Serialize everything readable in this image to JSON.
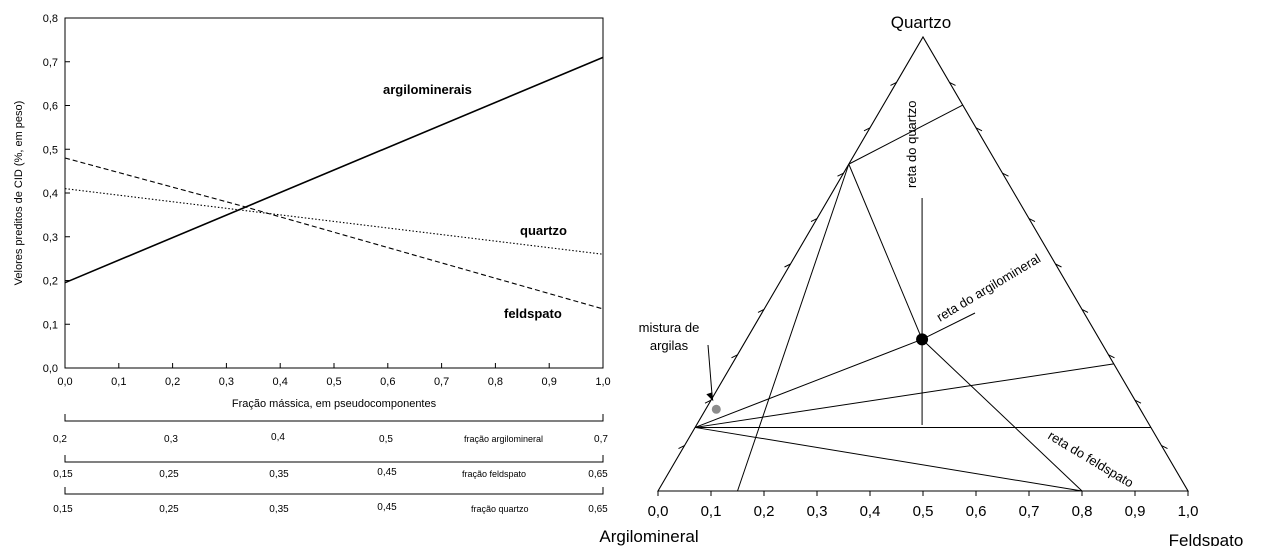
{
  "chart_data": [
    {
      "type": "line",
      "xlabel": "Fração mássica, em pseudocomponentes",
      "ylabel": "Velores preditos de CID (%, em peso)",
      "xlim": [
        0.0,
        1.0
      ],
      "ylim": [
        0.0,
        0.8
      ],
      "xticks": [
        "0,0",
        "0,1",
        "0,2",
        "0,3",
        "0,4",
        "0,5",
        "0,6",
        "0,7",
        "0,8",
        "0,9",
        "1,0"
      ],
      "yticks": [
        "0,0",
        "0,1",
        "0,2",
        "0,3",
        "0,4",
        "0,5",
        "0,6",
        "0,7",
        "0,8"
      ],
      "grid": false,
      "series": [
        {
          "name": "argilominerais",
          "style": "solid",
          "x": [
            0.0,
            1.0
          ],
          "y": [
            0.195,
            0.71
          ]
        },
        {
          "name": "quartzo",
          "style": "dotted",
          "x": [
            0.0,
            1.0
          ],
          "y": [
            0.41,
            0.26
          ]
        },
        {
          "name": "feldspato",
          "style": "dashed",
          "x": [
            0.0,
            0.33,
            1.0
          ],
          "y": [
            0.48,
            0.37,
            0.135
          ]
        }
      ],
      "secondary_scales": [
        {
          "name": "fração argilomineral",
          "ticks": [
            "0,2",
            "0,3",
            "0,4",
            "0,5",
            "0,7"
          ]
        },
        {
          "name": "fração feldspato",
          "ticks": [
            "0,15",
            "0,25",
            "0,35",
            "0,45",
            "0,65"
          ]
        },
        {
          "name": "fração quartzo",
          "ticks": [
            "0,15",
            "0,25",
            "0,35",
            "0,45",
            "0,65"
          ]
        }
      ]
    },
    {
      "type": "ternary",
      "vertices": {
        "top": "Quartzo",
        "left": "Argilomineral",
        "right": "Feldspato"
      },
      "base_ticks": [
        "0,0",
        "0,1",
        "0,2",
        "0,3",
        "0,4",
        "0,5",
        "0,6",
        "0,7",
        "0,8",
        "0,9",
        "1,0"
      ],
      "line_labels": [
        "reta do quartzo",
        "reta do argilomineral",
        "reta do feldspato"
      ],
      "annotation": {
        "line1": "mistura de",
        "line2": "argilas"
      },
      "points": [
        {
          "label": "centroid",
          "argilomineral": 0.333,
          "quartzo": 0.333,
          "feldspato": 0.333
        },
        {
          "label": "mistura de argilas",
          "argilomineral": 0.8,
          "quartzo": 0.18,
          "feldspato": 0.02
        }
      ]
    }
  ]
}
